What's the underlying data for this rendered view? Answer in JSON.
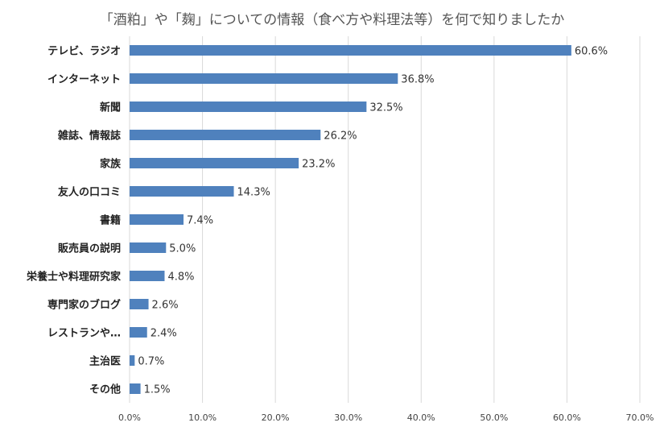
{
  "chart_data": {
    "type": "bar",
    "orientation": "horizontal",
    "title": "「酒粕」や「麹」についての情報（食べ方や料理法等）を何で知りましたか",
    "categories": [
      "テレビ、ラジオ",
      "インターネット",
      "新聞",
      "雑誌、情報誌",
      "家族",
      "友人の口コミ",
      "書籍",
      "販売員の説明",
      "栄養士や料理研究家",
      "専門家のブログ",
      "レストランや…",
      "主治医",
      "その他"
    ],
    "values": [
      60.6,
      36.8,
      32.5,
      26.2,
      23.2,
      14.3,
      7.4,
      5.0,
      4.8,
      2.6,
      2.4,
      0.7,
      1.5
    ],
    "data_labels": [
      "60.6%",
      "36.8%",
      "32.5%",
      "26.2%",
      "23.2%",
      "14.3%",
      "7.4%",
      "5.0%",
      "4.8%",
      "2.6%",
      "2.4%",
      "0.7%",
      "1.5%"
    ],
    "xlim": [
      0,
      70
    ],
    "xticks": [
      "0.0%",
      "10.0%",
      "20.0%",
      "30.0%",
      "40.0%",
      "50.0%",
      "60.0%",
      "70.0%"
    ],
    "grid": "vertical",
    "bar_color": "#4f81bd",
    "grid_color": "#d9d9d9"
  }
}
